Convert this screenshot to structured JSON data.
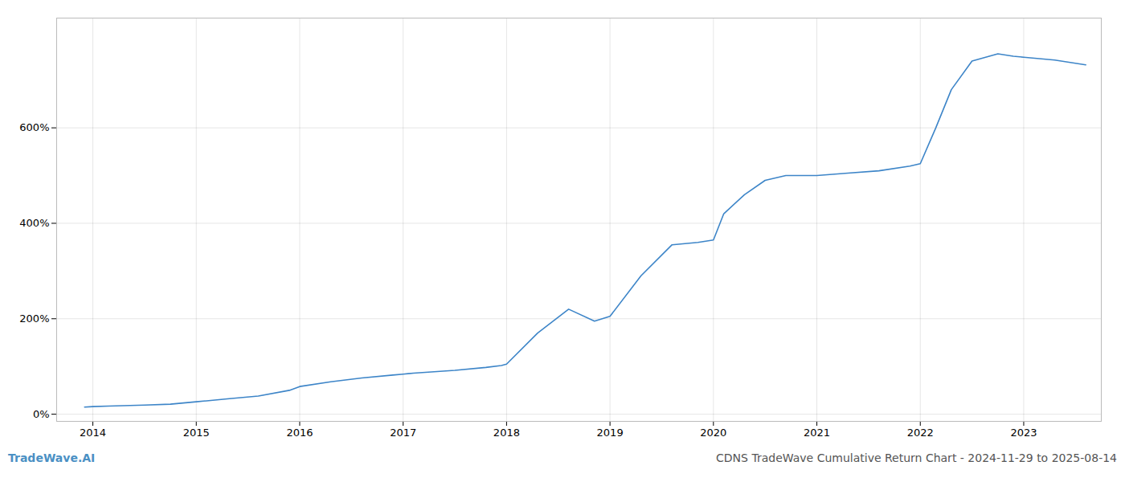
{
  "chart_data": {
    "type": "line",
    "x": [
      2013.92,
      2014.0,
      2014.15,
      2014.5,
      2014.75,
      2015.0,
      2015.1,
      2015.3,
      2015.6,
      2015.9,
      2016.0,
      2016.3,
      2016.6,
      2016.9,
      2017.0,
      2017.1,
      2017.5,
      2017.8,
      2017.95,
      2018.0,
      2018.3,
      2018.6,
      2018.85,
      2019.0,
      2019.3,
      2019.6,
      2019.85,
      2020.0,
      2020.1,
      2020.3,
      2020.5,
      2020.7,
      2020.9,
      2021.0,
      2021.3,
      2021.6,
      2021.9,
      2022.0,
      2022.15,
      2022.3,
      2022.5,
      2022.75,
      2022.9,
      2023.0,
      2023.3,
      2023.6
    ],
    "values": [
      15,
      16,
      17,
      19,
      21,
      26,
      28,
      32,
      38,
      50,
      58,
      68,
      76,
      82,
      84,
      86,
      92,
      98,
      102,
      105,
      170,
      220,
      195,
      205,
      290,
      355,
      360,
      365,
      420,
      460,
      490,
      500,
      500,
      500,
      505,
      510,
      520,
      525,
      600,
      680,
      740,
      755,
      750,
      748,
      742,
      732
    ],
    "color": "#3d85c8",
    "xlim": [
      2013.65,
      2023.75
    ],
    "ylim": [
      -15,
      830
    ],
    "xticks": [
      2014,
      2015,
      2016,
      2017,
      2018,
      2019,
      2020,
      2021,
      2022,
      2023
    ],
    "yticks": [
      {
        "value": 0,
        "label": "0%"
      },
      {
        "value": 200,
        "label": "200%"
      },
      {
        "value": 400,
        "label": "400%"
      },
      {
        "value": 600,
        "label": "600%"
      }
    ],
    "grid": true,
    "annotations": [
      {
        "text": "TradeWave.AI",
        "color": "#4a90c4"
      },
      {
        "text": "CDNS TradeWave Cumulative Return Chart - 2024-11-29 to 2025-08-14",
        "color": "#555555"
      }
    ]
  }
}
